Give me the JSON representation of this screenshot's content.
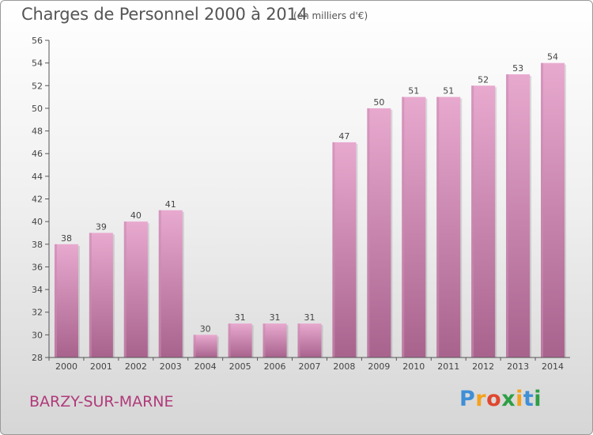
{
  "header": {
    "title": "Charges de Personnel 2000 à 2014",
    "subtitle": "(en milliers d'€)"
  },
  "footer": {
    "commune": "BARZY-SUR-MARNE",
    "logo": {
      "text": "Proxiti",
      "letters": [
        "P",
        "r",
        "o",
        "x",
        "i",
        "t",
        "i"
      ],
      "colors": [
        "#3f8fd6",
        "#f4a21c",
        "#e0472f",
        "#2e9e45",
        "#f4a21c",
        "#3f8fd6",
        "#2e9e45"
      ]
    }
  },
  "colors": {
    "bar_top": "#e8a9cf",
    "bar_bottom": "#a8638d",
    "bar_side": "#c98ab0",
    "axis": "#555555",
    "grid": "#d0d0d0"
  },
  "chart_data": {
    "type": "bar",
    "title": "Charges de Personnel 2000 à 2014",
    "subtitle": "(en milliers d'€)",
    "categories": [
      "2000",
      "2001",
      "2002",
      "2003",
      "2004",
      "2005",
      "2006",
      "2007",
      "2008",
      "2009",
      "2010",
      "2011",
      "2012",
      "2013",
      "2014"
    ],
    "values": [
      38,
      39,
      40,
      41,
      30,
      31,
      31,
      31,
      47,
      50,
      51,
      51,
      52,
      53,
      54
    ],
    "ylim": [
      28,
      56
    ],
    "yticks": [
      28,
      30,
      32,
      34,
      36,
      38,
      40,
      42,
      44,
      46,
      48,
      50,
      52,
      54,
      56
    ],
    "data_labels": true,
    "grid": false
  }
}
